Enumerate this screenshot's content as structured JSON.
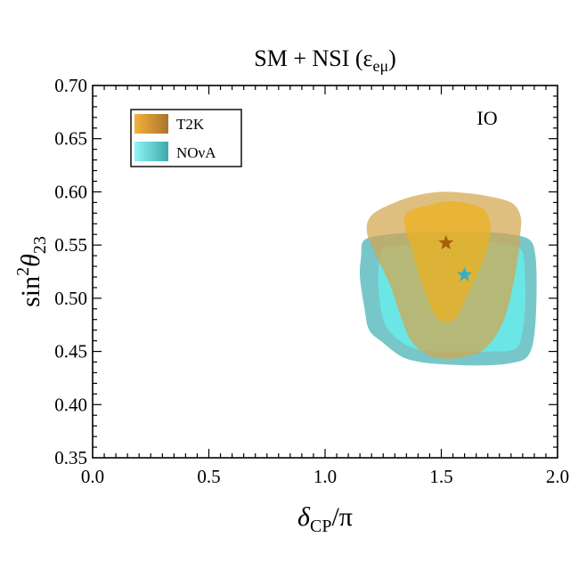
{
  "chart_data": {
    "type": "area",
    "title": "SM + NSI (ε",
    "title_subscript": "eμ",
    "title_close": ")",
    "xlabel": "δ",
    "xlabel_subscript": "CP",
    "xlabel_suffix": "/π",
    "ylabel_prefix": "sin",
    "ylabel_superscript": "2",
    "ylabel_theta": "θ",
    "ylabel_subscript": "23",
    "panel_label": "IO",
    "xlim": [
      0.0,
      2.0
    ],
    "ylim": [
      0.35,
      0.7
    ],
    "x_ticks": [
      "0.0",
      "0.5",
      "1.0",
      "1.5",
      "2.0"
    ],
    "y_ticks": [
      "0.35",
      "0.40",
      "0.45",
      "0.50",
      "0.55",
      "0.60",
      "0.65",
      "0.70"
    ],
    "grid": false,
    "legend_position": "top-left",
    "legend": [
      {
        "name": "T2K",
        "color": "#e8a61c"
      },
      {
        "name": "NOνA",
        "color": "#3fc6c6"
      }
    ],
    "series": [
      {
        "name": "NOνA",
        "color_outer": "#43b2b5",
        "color_inner": "#66f2f2",
        "best_fit": [
          1.6,
          0.522
        ],
        "outer_contour": [
          [
            1.16,
            0.552
          ],
          [
            1.19,
            0.557
          ],
          [
            1.27,
            0.56
          ],
          [
            1.4,
            0.562
          ],
          [
            1.55,
            0.563
          ],
          [
            1.7,
            0.562
          ],
          [
            1.8,
            0.56
          ],
          [
            1.88,
            0.555
          ],
          [
            1.905,
            0.54
          ],
          [
            1.91,
            0.505
          ],
          [
            1.9,
            0.465
          ],
          [
            1.87,
            0.445
          ],
          [
            1.8,
            0.439
          ],
          [
            1.7,
            0.437
          ],
          [
            1.6,
            0.437
          ],
          [
            1.5,
            0.438
          ],
          [
            1.41,
            0.44
          ],
          [
            1.33,
            0.445
          ],
          [
            1.25,
            0.458
          ],
          [
            1.19,
            0.47
          ],
          [
            1.17,
            0.49
          ],
          [
            1.15,
            0.52
          ],
          [
            1.155,
            0.54
          ]
        ],
        "inner_contour": [
          [
            1.26,
            0.548
          ],
          [
            1.35,
            0.55
          ],
          [
            1.5,
            0.552
          ],
          [
            1.65,
            0.553
          ],
          [
            1.78,
            0.551
          ],
          [
            1.845,
            0.545
          ],
          [
            1.86,
            0.52
          ],
          [
            1.86,
            0.49
          ],
          [
            1.84,
            0.46
          ],
          [
            1.8,
            0.451
          ],
          [
            1.7,
            0.45
          ],
          [
            1.6,
            0.45
          ],
          [
            1.5,
            0.45
          ],
          [
            1.42,
            0.451
          ],
          [
            1.35,
            0.456
          ],
          [
            1.29,
            0.466
          ],
          [
            1.25,
            0.48
          ],
          [
            1.23,
            0.51
          ],
          [
            1.235,
            0.538
          ]
        ]
      },
      {
        "name": "T2K",
        "color_outer": "#d2a64d",
        "color_inner": "#ecb11e",
        "best_fit": [
          1.52,
          0.552
        ],
        "outer_contour": [
          [
            1.18,
            0.562
          ],
          [
            1.2,
            0.578
          ],
          [
            1.3,
            0.59
          ],
          [
            1.4,
            0.597
          ],
          [
            1.5,
            0.6
          ],
          [
            1.6,
            0.599
          ],
          [
            1.7,
            0.596
          ],
          [
            1.8,
            0.59
          ],
          [
            1.84,
            0.578
          ],
          [
            1.84,
            0.56
          ],
          [
            1.82,
            0.525
          ],
          [
            1.77,
            0.48
          ],
          [
            1.69,
            0.453
          ],
          [
            1.6,
            0.445
          ],
          [
            1.52,
            0.443
          ],
          [
            1.44,
            0.447
          ],
          [
            1.37,
            0.46
          ],
          [
            1.33,
            0.48
          ],
          [
            1.28,
            0.512
          ],
          [
            1.22,
            0.54
          ]
        ],
        "inner_contour": [
          [
            1.35,
            0.58
          ],
          [
            1.45,
            0.588
          ],
          [
            1.52,
            0.591
          ],
          [
            1.6,
            0.59
          ],
          [
            1.68,
            0.584
          ],
          [
            1.71,
            0.57
          ],
          [
            1.7,
            0.548
          ],
          [
            1.66,
            0.525
          ],
          [
            1.61,
            0.502
          ],
          [
            1.57,
            0.484
          ],
          [
            1.53,
            0.477
          ],
          [
            1.48,
            0.482
          ],
          [
            1.44,
            0.5
          ],
          [
            1.4,
            0.525
          ],
          [
            1.37,
            0.548
          ],
          [
            1.345,
            0.565
          ]
        ]
      }
    ]
  }
}
